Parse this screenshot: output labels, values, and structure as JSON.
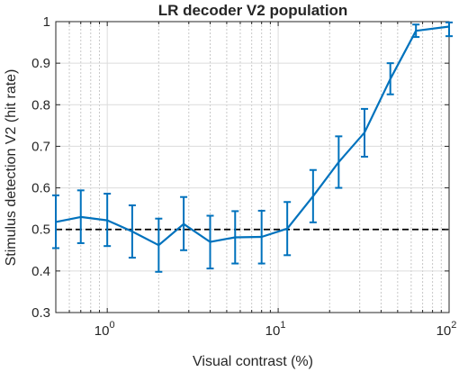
{
  "chart_data": {
    "type": "line",
    "title": "LR decoder V2 population",
    "xlabel": "Visual contrast (%)",
    "ylabel": "Stimulus detection V2 (hit rate)",
    "xscale": "log",
    "xlim": [
      0.5,
      100
    ],
    "ylim": [
      0.3,
      1.0
    ],
    "xticks": [
      {
        "base": "10",
        "exp": "0",
        "value": 1
      },
      {
        "base": "10",
        "exp": "1",
        "value": 10
      },
      {
        "base": "10",
        "exp": "2",
        "value": 100
      }
    ],
    "yticks": [
      "0.3",
      "0.4",
      "0.5",
      "0.6",
      "0.7",
      "0.8",
      "0.9",
      "1"
    ],
    "grid": true,
    "reference_line": {
      "y": 0.5,
      "style": "dashed",
      "color": "#000000"
    },
    "series": [
      {
        "color": "#0072BD",
        "x": [
          0.5,
          0.7,
          1.0,
          1.4,
          2.0,
          2.8,
          4.0,
          5.6,
          8.0,
          11.3,
          16.0,
          22.6,
          32.0,
          45.3,
          64.0,
          100.0
        ],
        "y": [
          0.518,
          0.53,
          0.522,
          0.495,
          0.462,
          0.513,
          0.47,
          0.481,
          0.482,
          0.502,
          0.58,
          0.662,
          0.733,
          0.862,
          0.978,
          0.988
        ],
        "err_low": [
          0.455,
          0.467,
          0.46,
          0.432,
          0.398,
          0.45,
          0.406,
          0.418,
          0.418,
          0.438,
          0.517,
          0.6,
          0.675,
          0.825,
          0.963,
          0.965
        ],
        "err_high": [
          0.582,
          0.594,
          0.586,
          0.558,
          0.526,
          0.578,
          0.533,
          0.544,
          0.545,
          0.566,
          0.643,
          0.724,
          0.79,
          0.9,
          0.993,
          0.998
        ]
      }
    ]
  }
}
